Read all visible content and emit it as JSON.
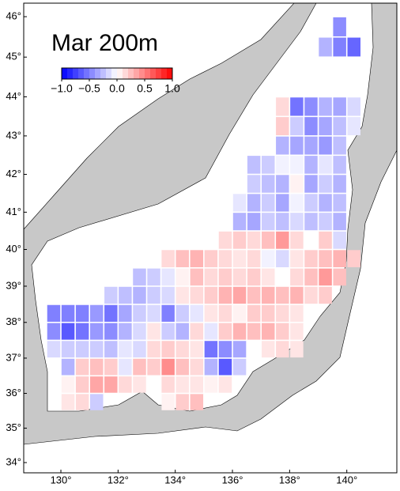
{
  "chart_data": {
    "type": "gridmap",
    "title": "Mar 200m",
    "xlim": [
      128.7,
      141.75
    ],
    "ylim": [
      33.7,
      46.33
    ],
    "xticks": [
      {
        "value": 130,
        "label": "130°"
      },
      {
        "value": 132,
        "label": "132°"
      },
      {
        "value": 134,
        "label": "134°"
      },
      {
        "value": 136,
        "label": "136°"
      },
      {
        "value": 138,
        "label": "138°"
      },
      {
        "value": 140,
        "label": "140°"
      }
    ],
    "yticks": [
      {
        "value": 34,
        "label": "34°"
      },
      {
        "value": 35,
        "label": "35°"
      },
      {
        "value": 36,
        "label": "36°"
      },
      {
        "value": 37,
        "label": "37°"
      },
      {
        "value": 38,
        "label": "38°"
      },
      {
        "value": 39,
        "label": "39°"
      },
      {
        "value": 40,
        "label": "40°"
      },
      {
        "value": 41,
        "label": "41°"
      },
      {
        "value": 42,
        "label": "42°"
      },
      {
        "value": 43,
        "label": "43°"
      },
      {
        "value": 44,
        "label": "44°"
      },
      {
        "value": 45,
        "label": "45°"
      },
      {
        "value": 46,
        "label": "46°"
      }
    ],
    "colors": [
      "#0000ff",
      "#ffffff",
      "#ff0000"
    ],
    "colorbar": {
      "lim": [
        -1,
        1
      ],
      "ticks": [
        {
          "value": -1,
          "label": "−1.0"
        },
        {
          "value": -0.5,
          "label": "−0.5"
        },
        {
          "value": 0,
          "label": "0.0"
        },
        {
          "value": 0.5,
          "label": "0.5"
        },
        {
          "value": 1,
          "label": "1.0"
        }
      ]
    },
    "rows": [
      {
        "lat": 45.75,
        "lon_start": 139.75,
        "values": [
          -0.45
        ]
      },
      {
        "lat": 45.25,
        "lon_start": 139.25,
        "values": [
          -0.3,
          -0.5,
          -0.6
        ]
      },
      {
        "lat": 43.75,
        "lon_start": 137.75,
        "values": [
          0.15,
          -0.55,
          -0.45,
          -0.3,
          -0.35,
          -0.15
        ]
      },
      {
        "lat": 43.25,
        "lon_start": 137.75,
        "values": [
          0.2,
          -0.2,
          -0.45,
          -0.35,
          -0.25,
          -0.1
        ]
      },
      {
        "lat": 42.75,
        "lon_start": 137.75,
        "values": [
          -0.3,
          -0.35,
          -0.35,
          -0.4,
          -0.25
        ]
      },
      {
        "lat": 42.25,
        "lon_start": 136.75,
        "values": [
          -0.25,
          -0.2,
          -0.05,
          -0.05,
          -0.3,
          -0.1,
          -0.25
        ]
      },
      {
        "lat": 41.75,
        "lon_start": 136.75,
        "values": [
          -0.2,
          -0.25,
          -0.3,
          0.05,
          -0.35,
          -0.2,
          -0.3
        ]
      },
      {
        "lat": 41.25,
        "lon_start": 136.25,
        "values": [
          -0.1,
          -0.3,
          -0.2,
          -0.35,
          -0.05,
          -0.2,
          -0.3,
          -0.25
        ]
      },
      {
        "lat": 40.75,
        "lon_start": 136.25,
        "values": [
          -0.3,
          -0.35,
          -0.2,
          -0.25,
          -0.15,
          -0.25,
          -0.2,
          -0.3
        ]
      },
      {
        "lat": 40.25,
        "lon_start": 135.75,
        "values": [
          0.15,
          0.2,
          0.15,
          0.25,
          0.4,
          0.15,
          0.0,
          0.2,
          -0.15
        ]
      },
      {
        "lat": 39.75,
        "lon_start": 133.75,
        "values": [
          0.15,
          0.25,
          0.3,
          0.2,
          0.15,
          0.1,
          0.15,
          -0.05,
          -0.15,
          0.1,
          0.2,
          0.25,
          0.3,
          0.2
        ]
      },
      {
        "lat": 39.25,
        "lon_start": 132.75,
        "values": [
          -0.25,
          -0.2,
          -0.1,
          0.05,
          0.25,
          0.15,
          0.2,
          0.15,
          0.2,
          0.1,
          0.0,
          0.15,
          0.25,
          0.4,
          0.25
        ]
      },
      {
        "lat": 38.75,
        "lon_start": 131.75,
        "values": [
          -0.2,
          -0.25,
          -0.3,
          -0.2,
          -0.15,
          0.1,
          0.15,
          0.2,
          0.3,
          0.35,
          0.25,
          0.3,
          0.25,
          0.3,
          0.15,
          0.2
        ]
      },
      {
        "lat": 38.25,
        "lon_start": 129.75,
        "values": [
          -0.5,
          -0.5,
          -0.5,
          -0.4,
          -0.55,
          -0.35,
          -0.2,
          -0.15,
          -0.5,
          -0.2,
          -0.1,
          0.1,
          0.15,
          0.05,
          0.2,
          0.2,
          0.15,
          0.1
        ]
      },
      {
        "lat": 37.75,
        "lon_start": 129.75,
        "values": [
          -0.45,
          -0.65,
          -0.55,
          -0.4,
          -0.45,
          -0.3,
          -0.15,
          0.1,
          -0.2,
          -0.3,
          0.15,
          -0.1,
          0.2,
          0.3,
          0.25,
          0.3,
          0.2,
          0.1
        ]
      },
      {
        "lat": 37.25,
        "lon_start": 129.75,
        "values": [
          -0.15,
          -0.2,
          -0.2,
          -0.2,
          -0.25,
          -0.1,
          -0.15,
          0.15,
          0.2,
          0.15,
          0.1,
          -0.55,
          -0.45,
          -0.35,
          null,
          0.1,
          0.15,
          0.1
        ]
      },
      {
        "lat": 36.75,
        "lon_start": 130.25,
        "values": [
          -0.3,
          0.2,
          0.25,
          0.2,
          -0.1,
          0.25,
          0.2,
          0.45,
          0.25,
          0.15,
          -0.3,
          -0.65,
          -0.2
        ]
      },
      {
        "lat": 36.25,
        "lon_start": 130.25,
        "values": [
          0.05,
          0.2,
          0.35,
          0.35,
          0.15,
          0.1,
          null,
          0.15,
          0.1,
          0.1,
          0.05,
          0.1
        ]
      },
      {
        "lat": 35.75,
        "lon_start": 130.25,
        "values": [
          0.1,
          0.15,
          -0.2,
          null,
          null,
          null,
          null,
          0.05,
          0.2,
          0.25
        ]
      }
    ]
  }
}
